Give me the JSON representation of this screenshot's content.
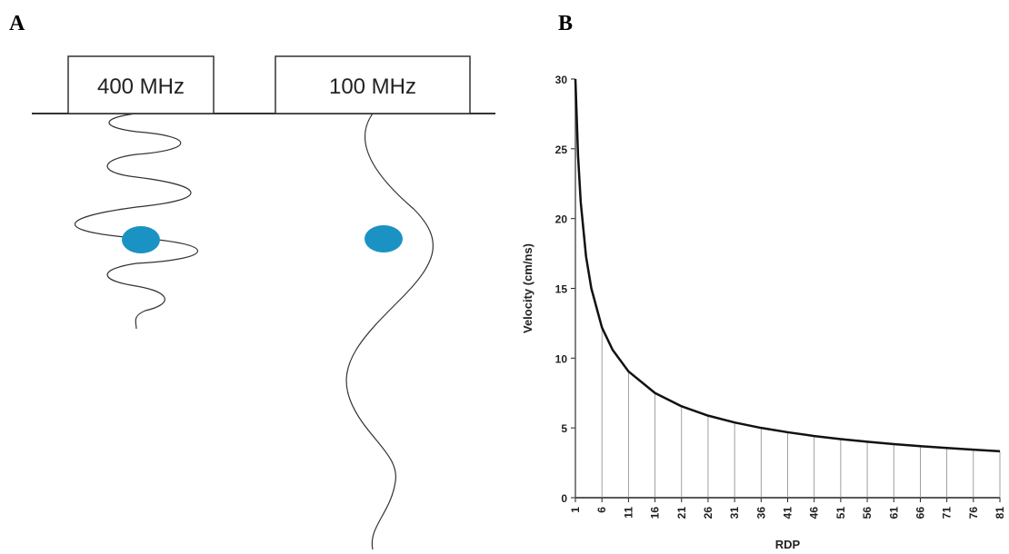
{
  "diagram": {
    "panel_label": "A",
    "antennas": [
      "400 MHz",
      "100 MHz"
    ]
  },
  "chart_data": {
    "type": "line",
    "panel_label": "B",
    "x_label": "RDP",
    "y_label": "Velocity (cm/ns)",
    "x": [
      1,
      1.5,
      2,
      3,
      4,
      6,
      8,
      11,
      16,
      21,
      26,
      31,
      36,
      41,
      46,
      51,
      56,
      61,
      66,
      71,
      76,
      81
    ],
    "series": [
      {
        "color": "#111111",
        "values": [
          30,
          24.5,
          21.2,
          17.3,
          15,
          12.2,
          10.6,
          9.05,
          7.5,
          6.55,
          5.88,
          5.39,
          5.0,
          4.69,
          4.42,
          4.2,
          4.01,
          3.84,
          3.69,
          3.56,
          3.44,
          3.33
        ]
      }
    ],
    "xlim": [
      1,
      81
    ],
    "xticks": [
      1,
      6,
      11,
      16,
      21,
      26,
      31,
      36,
      41,
      46,
      51,
      56,
      61,
      66,
      71,
      76,
      81
    ],
    "ylim": [
      0,
      30
    ],
    "yticks": [
      0,
      5,
      10,
      15,
      20,
      25,
      30
    ],
    "drop_lines": true
  }
}
